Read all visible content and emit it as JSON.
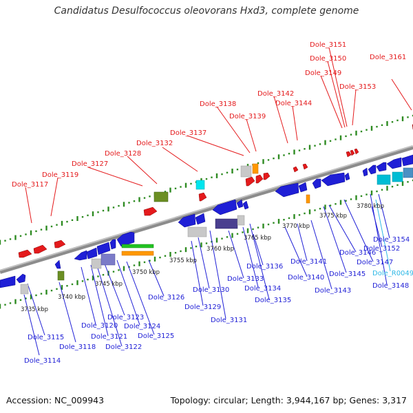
{
  "title": "Candidatus Desulfococcus oleovorans Hxd3, complete genome",
  "footer": {
    "accession": "Accession: NC_009943",
    "stats": "Topology: circular; Length: 3,944,167 bp; Genes: 3,317"
  },
  "colors": {
    "red_gene": "#e41a1c",
    "blue_gene": "#1f1fd6",
    "cyan_gene": "#00bcd4",
    "rna_label": "#2eb8e6",
    "axis_tick": "#2e8b22",
    "backbone": "#8c8c8c"
  },
  "kbp_labels": [
    "3735 kbp",
    "3740 kbp",
    "3745 kbp",
    "3750 kbp",
    "3755 kbp",
    "3760 kbp",
    "3765 kbp",
    "3770 kbp",
    "3775 kbp",
    "3780 kbp"
  ],
  "top_labels": [
    "Dole_3117",
    "Dole_3119",
    "Dole_3127",
    "Dole_3128",
    "Dole_3132",
    "Dole_3137",
    "Dole_3138",
    "Dole_3139",
    "Dole_3142",
    "Dole_3144",
    "Dole_3149",
    "Dole_3150",
    "Dole_3151",
    "Dole_3153",
    "Dole_3161"
  ],
  "bottom_labels": [
    "Dole_3114",
    "Dole_3115",
    "Dole_3118",
    "Dole_3120",
    "Dole_3121",
    "Dole_3122",
    "Dole_3123",
    "Dole_3124",
    "Dole_3125",
    "Dole_3126",
    "Dole_3129",
    "Dole_3130",
    "Dole_3131",
    "Dole_3133",
    "Dole_3134",
    "Dole_3135",
    "Dole_3136",
    "Dole_3140",
    "Dole_3141",
    "Dole_3143",
    "Dole_3145",
    "Dole_3146",
    "Dole_3147",
    "Dole_3148",
    "Dole_3152",
    "Dole_3154"
  ],
  "rna_labels": [
    "Dole_R0049"
  ]
}
